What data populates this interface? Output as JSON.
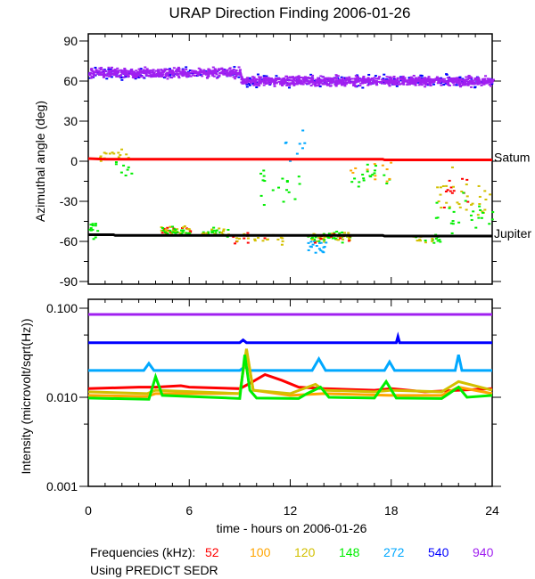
{
  "chart_data": [
    {
      "type": "scatter",
      "title": "URAP Direction Finding  2006-01-26",
      "ylabel": "Azimuthal angle (deg)",
      "xlim": [
        0,
        24
      ],
      "ylim": [
        -90,
        90
      ],
      "yticks": [
        "90",
        "60",
        "30",
        "0",
        "-30",
        "-60",
        "-90"
      ],
      "reference_lines": [
        {
          "name": "Saturn",
          "label": "Satum",
          "color": "#ff0000",
          "points": [
            [
              0,
              2
            ],
            [
              1,
              1.5
            ],
            [
              1.1,
              1.5
            ],
            [
              17.5,
              1.5
            ],
            [
              17.6,
              1
            ],
            [
              24,
              1
            ]
          ]
        },
        {
          "name": "Jupiter",
          "label": "Jupiter",
          "color": "#000000",
          "points": [
            [
              0,
              -55
            ],
            [
              1.5,
              -55
            ],
            [
              1.6,
              -55.5
            ],
            [
              17.5,
              -55.5
            ],
            [
              17.6,
              -56
            ],
            [
              24,
              -56
            ]
          ]
        }
      ],
      "bands": [
        {
          "freq": "940",
          "points": [
            [
              0,
              66
            ],
            [
              8.9,
              66
            ],
            [
              9.1,
              60
            ],
            [
              24,
              60
            ]
          ],
          "spread": 5
        },
        {
          "freq": "540",
          "points": [
            [
              0,
              66
            ],
            [
              8.9,
              66
            ],
            [
              9.1,
              60
            ],
            [
              24,
              60
            ]
          ],
          "spread": 6
        }
      ],
      "clusters": [
        {
          "freq": "148",
          "hours": [
            0,
            0.6
          ],
          "angle": -50,
          "spread": 10,
          "n": 12
        },
        {
          "freq": "120",
          "hours": [
            0.5,
            2.5
          ],
          "angle": 5,
          "spread": 12,
          "n": 15
        },
        {
          "freq": "148",
          "hours": [
            1.5,
            2.7
          ],
          "angle": -5,
          "spread": 12,
          "n": 8
        },
        {
          "freq": "52",
          "hours": [
            4.2,
            6
          ],
          "angle": -52,
          "spread": 5,
          "n": 15
        },
        {
          "freq": "120",
          "hours": [
            4.2,
            6
          ],
          "angle": -52,
          "spread": 5,
          "n": 25
        },
        {
          "freq": "148",
          "hours": [
            4.2,
            6
          ],
          "angle": -52,
          "spread": 5,
          "n": 20
        },
        {
          "freq": "148",
          "hours": [
            6.7,
            8.5
          ],
          "angle": -53,
          "spread": 6,
          "n": 15
        },
        {
          "freq": "120",
          "hours": [
            6.7,
            8.5
          ],
          "angle": -53,
          "spread": 6,
          "n": 12
        },
        {
          "freq": "52",
          "hours": [
            8.5,
            10.5
          ],
          "angle": -58,
          "spread": 6,
          "n": 8
        },
        {
          "freq": "120",
          "hours": [
            8.5,
            11.5
          ],
          "angle": -58,
          "spread": 5,
          "n": 18
        },
        {
          "freq": "148",
          "hours": [
            10,
            12.5
          ],
          "angle": -20,
          "spread": 30,
          "n": 18
        },
        {
          "freq": "272",
          "hours": [
            11.5,
            13
          ],
          "angle": 10,
          "spread": 20,
          "n": 8
        },
        {
          "freq": "148",
          "hours": [
            13,
            15.5
          ],
          "angle": -57,
          "spread": 6,
          "n": 35
        },
        {
          "freq": "120",
          "hours": [
            13,
            15.5
          ],
          "angle": -57,
          "spread": 6,
          "n": 30
        },
        {
          "freq": "272",
          "hours": [
            13,
            14.2
          ],
          "angle": -65,
          "spread": 8,
          "n": 18
        },
        {
          "freq": "52",
          "hours": [
            13,
            15.5
          ],
          "angle": -57,
          "spread": 6,
          "n": 10
        },
        {
          "freq": "148",
          "hours": [
            15.5,
            18
          ],
          "angle": -10,
          "spread": 15,
          "n": 18
        },
        {
          "freq": "100",
          "hours": [
            15.5,
            18
          ],
          "angle": -8,
          "spread": 12,
          "n": 12
        },
        {
          "freq": "148",
          "hours": [
            19,
            21
          ],
          "angle": -58,
          "spread": 4,
          "n": 12
        },
        {
          "freq": "120",
          "hours": [
            19,
            21
          ],
          "angle": -58,
          "spread": 4,
          "n": 10
        },
        {
          "freq": "52",
          "hours": [
            20.5,
            22.5
          ],
          "angle": -20,
          "spread": 20,
          "n": 12
        },
        {
          "freq": "120",
          "hours": [
            20.5,
            24
          ],
          "angle": -25,
          "spread": 25,
          "n": 30
        },
        {
          "freq": "148",
          "hours": [
            20.5,
            24
          ],
          "angle": -40,
          "spread": 25,
          "n": 25
        }
      ]
    },
    {
      "type": "line",
      "xlabel": "time - hours on 2006-01-26",
      "ylabel": "Intensity (microvolt/sqrt(Hz))",
      "xlim": [
        0,
        24
      ],
      "ylim": [
        0.001,
        0.1
      ],
      "yscale": "log",
      "yticks": [
        "0.100",
        "0.010",
        "0.001"
      ],
      "xticks": [
        "0",
        "6",
        "12",
        "18",
        "24"
      ],
      "series": [
        {
          "freq": "940",
          "x": [
            0,
            24
          ],
          "y": [
            0.085,
            0.085
          ]
        },
        {
          "freq": "540",
          "x": [
            0,
            9,
            9.2,
            9.4,
            18.3,
            18.4,
            18.5,
            24
          ],
          "y": [
            0.041,
            0.041,
            0.044,
            0.041,
            0.041,
            0.048,
            0.041,
            0.041
          ]
        },
        {
          "freq": "272",
          "x": [
            0,
            3.3,
            3.6,
            3.9,
            9,
            9.3,
            9.6,
            13.3,
            13.7,
            14.1,
            17.6,
            17.9,
            18.2,
            21.8,
            22,
            22.2,
            24
          ],
          "y": [
            0.02,
            0.02,
            0.024,
            0.02,
            0.02,
            0.022,
            0.02,
            0.02,
            0.027,
            0.02,
            0.02,
            0.025,
            0.02,
            0.02,
            0.03,
            0.02,
            0.02
          ]
        },
        {
          "freq": "52",
          "x": [
            0,
            3,
            4,
            5.5,
            6,
            9,
            9.5,
            10.5,
            11.5,
            12.5,
            14,
            17,
            18,
            20,
            22,
            24
          ],
          "y": [
            0.0125,
            0.013,
            0.013,
            0.0135,
            0.013,
            0.0125,
            0.014,
            0.018,
            0.0155,
            0.013,
            0.0125,
            0.012,
            0.0125,
            0.0115,
            0.012,
            0.0125
          ]
        },
        {
          "freq": "100",
          "x": [
            0,
            3.5,
            4,
            9,
            9.4,
            9.8,
            12,
            14,
            18,
            21,
            22,
            24
          ],
          "y": [
            0.0105,
            0.0102,
            0.011,
            0.011,
            0.034,
            0.012,
            0.0105,
            0.011,
            0.0105,
            0.0105,
            0.013,
            0.011
          ]
        },
        {
          "freq": "120",
          "x": [
            0,
            3.5,
            4,
            9,
            9.4,
            9.8,
            12,
            13.5,
            14,
            17,
            18,
            21,
            22,
            24
          ],
          "y": [
            0.0115,
            0.011,
            0.012,
            0.011,
            0.035,
            0.012,
            0.011,
            0.014,
            0.012,
            0.0115,
            0.012,
            0.0115,
            0.015,
            0.012
          ]
        },
        {
          "freq": "148",
          "x": [
            0,
            3.6,
            4,
            4.4,
            9,
            9.3,
            9.6,
            10,
            12.5,
            13,
            13.8,
            14.3,
            17,
            17.7,
            18.3,
            21,
            22,
            22.5,
            24
          ],
          "y": [
            0.0098,
            0.0095,
            0.017,
            0.0105,
            0.0097,
            0.03,
            0.012,
            0.0098,
            0.0097,
            0.011,
            0.013,
            0.01,
            0.0098,
            0.015,
            0.0098,
            0.0097,
            0.013,
            0.01,
            0.0105
          ]
        }
      ]
    }
  ],
  "legend": {
    "label": "Frequencies (kHz):",
    "items": [
      {
        "freq": "52",
        "color": "#ff0000"
      },
      {
        "freq": "100",
        "color": "#ffa500"
      },
      {
        "freq": "120",
        "color": "#d2c000"
      },
      {
        "freq": "148",
        "color": "#00ee00"
      },
      {
        "freq": "272",
        "color": "#00a8ff"
      },
      {
        "freq": "540",
        "color": "#0000ff"
      },
      {
        "freq": "940",
        "color": "#a020f0"
      }
    ]
  },
  "footer": "Using PREDICT SEDR"
}
